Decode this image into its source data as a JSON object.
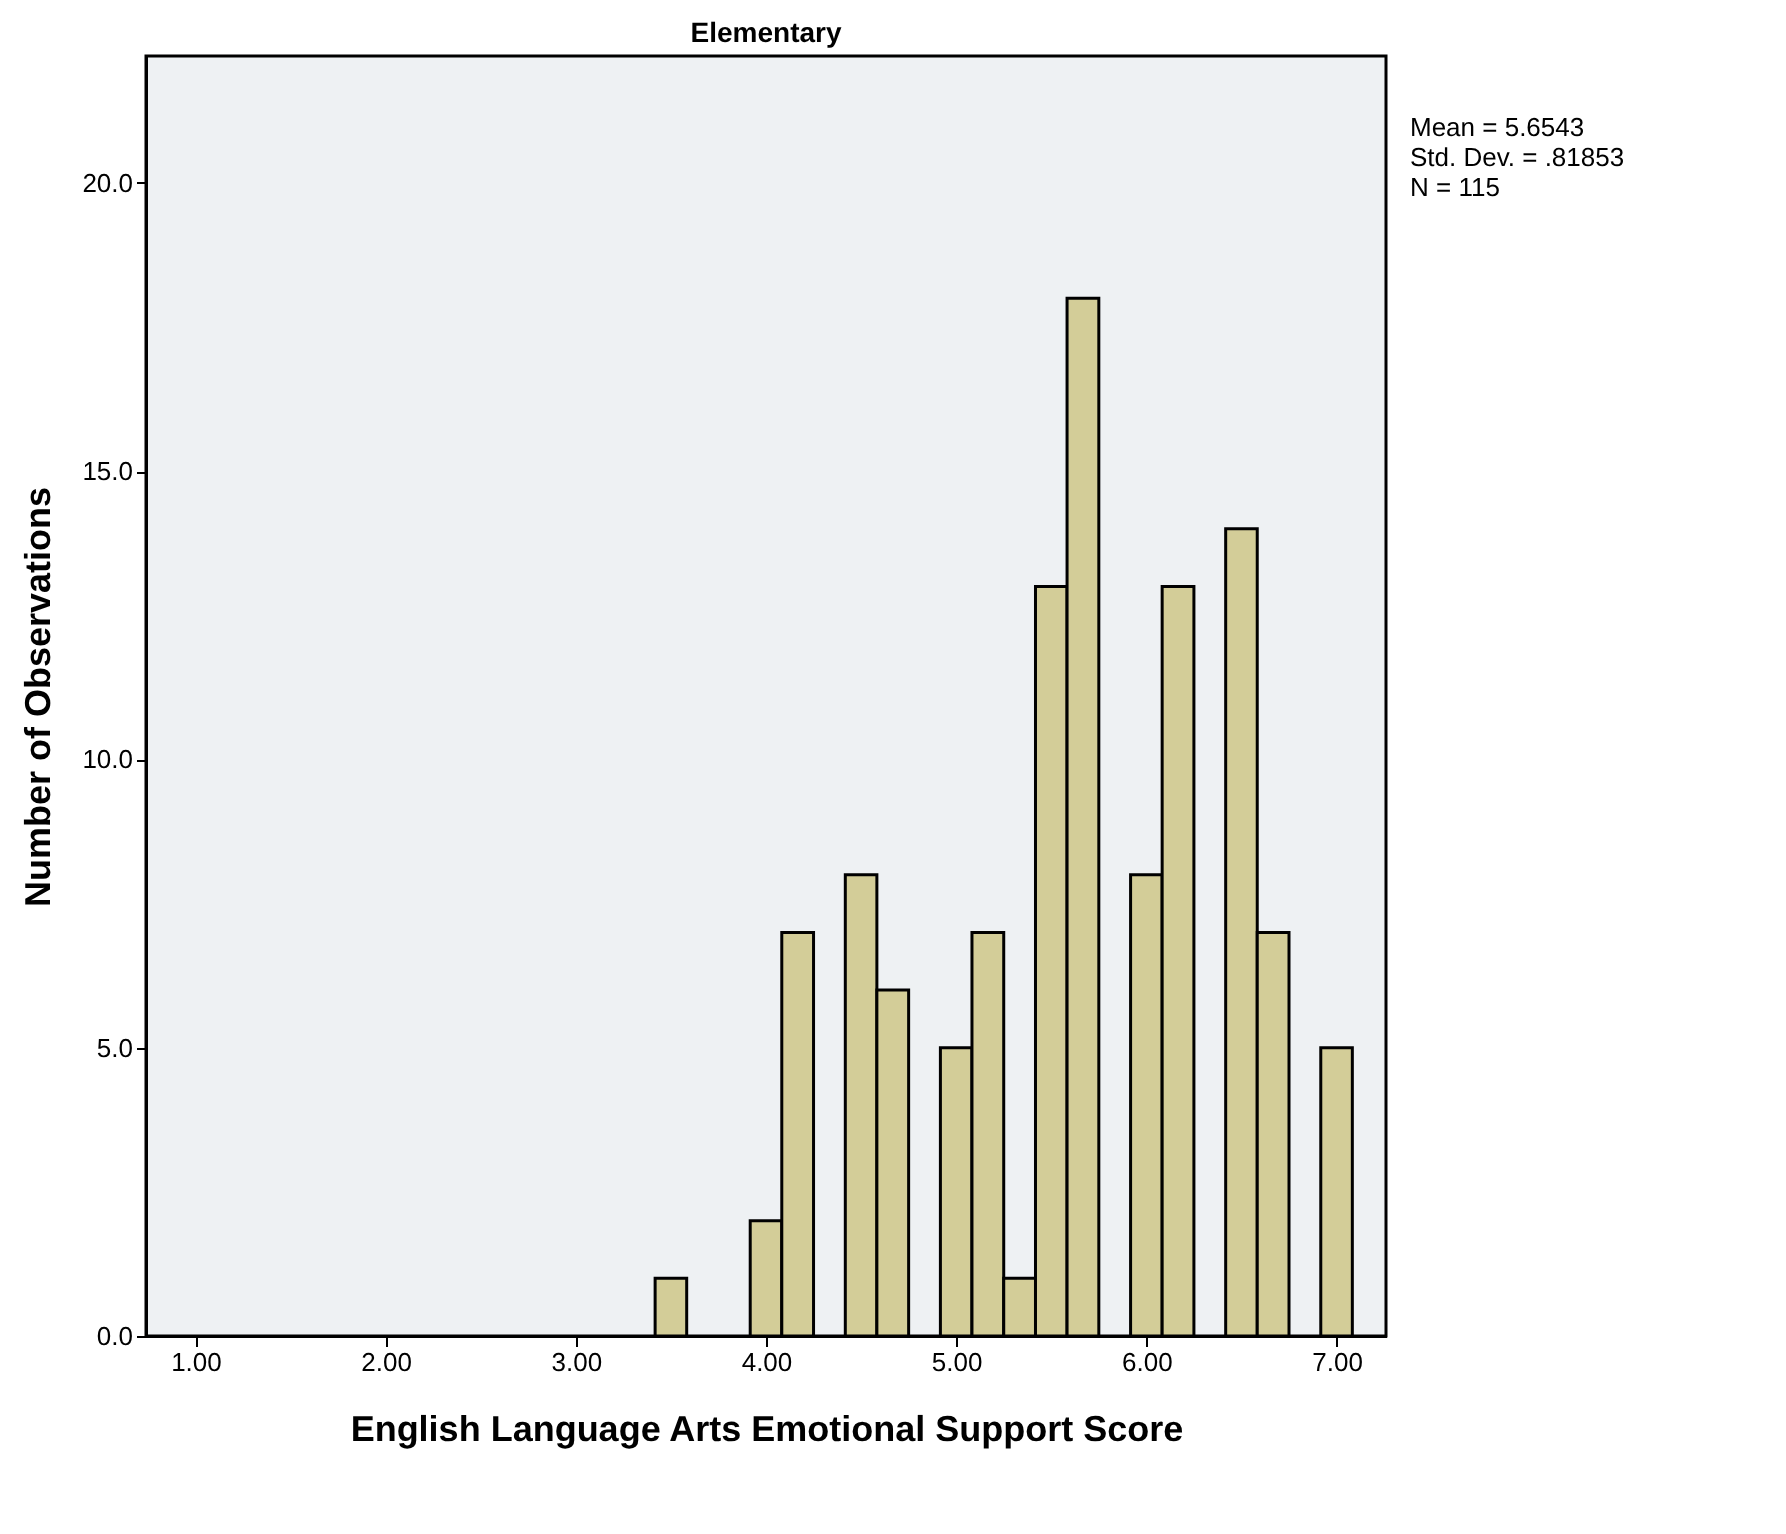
{
  "chart_data": {
    "type": "histogram",
    "title": "Elementary",
    "xlabel": "English Language Arts Emotional Support Score",
    "ylabel": "Number of Observations",
    "bins": [
      3.417,
      3.583,
      3.75,
      3.917,
      4.083,
      4.25,
      4.417,
      4.583,
      4.75,
      4.917,
      5.083,
      5.25,
      5.417,
      5.583,
      5.75,
      5.917,
      6.083,
      6.25,
      6.417,
      6.583,
      6.75,
      6.917,
      7.083
    ],
    "values": [
      1,
      0,
      0,
      2,
      7,
      0,
      8,
      6,
      0,
      5,
      7,
      1,
      13,
      18,
      0,
      8,
      13,
      0,
      14,
      7,
      0,
      5
    ],
    "color": "#d3cd98",
    "xlim": [
      0.74,
      7.26
    ],
    "ylim": [
      0,
      22.2
    ],
    "xticks": [
      {
        "value": 1,
        "label": "1.00"
      },
      {
        "value": 2,
        "label": "2.00"
      },
      {
        "value": 3,
        "label": "3.00"
      },
      {
        "value": 4,
        "label": "4.00"
      },
      {
        "value": 5,
        "label": "5.00"
      },
      {
        "value": 6,
        "label": "6.00"
      },
      {
        "value": 7,
        "label": "7.00"
      }
    ],
    "yticks": [
      {
        "value": 0,
        "label": "0.0"
      },
      {
        "value": 5,
        "label": "5.0"
      },
      {
        "value": 10,
        "label": "10.0"
      },
      {
        "value": 15,
        "label": "15.0"
      },
      {
        "value": 20,
        "label": "20.0"
      }
    ],
    "annotations": [
      "Mean = 5.6543",
      "Std. Dev. = .81853",
      "N = 115"
    ],
    "grid": false
  }
}
